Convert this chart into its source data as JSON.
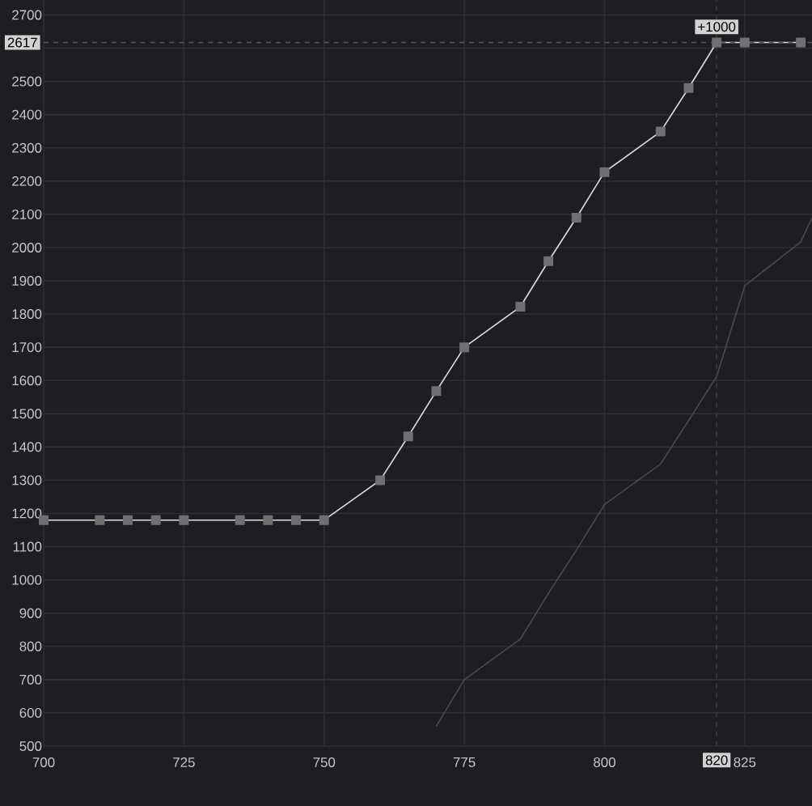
{
  "chart_data": {
    "type": "line",
    "series": [
      {
        "color": "#4a4a4c",
        "marker": "none",
        "x": [
          770,
          775,
          785,
          790,
          795,
          800,
          810,
          815,
          820,
          825,
          835,
          837
        ],
        "values": [
          560,
          700,
          822,
          960,
          1090,
          1227,
          1349,
          1480,
          1612,
          1885,
          2017,
          2090
        ]
      },
      {
        "color": "#e0e0e0",
        "marker": "square",
        "x": [
          700,
          710,
          715,
          720,
          725,
          735,
          740,
          745,
          750,
          760,
          765,
          770,
          775,
          785,
          790,
          795,
          800,
          810,
          815,
          820,
          825,
          835
        ],
        "values": [
          1180,
          1180,
          1180,
          1180,
          1180,
          1180,
          1180,
          1180,
          1180,
          1300,
          1432,
          1568,
          1700,
          1822,
          1959,
          2090,
          2227,
          2349,
          2480,
          2617,
          2617,
          2617
        ]
      }
    ],
    "xlim": [
      700,
      837
    ],
    "ylim": [
      500,
      2745
    ],
    "xticks": [
      700,
      725,
      750,
      775,
      800,
      825
    ],
    "yticks": [
      500,
      600,
      700,
      800,
      900,
      1000,
      1100,
      1200,
      1300,
      1400,
      1500,
      1600,
      1700,
      1800,
      1900,
      2000,
      2100,
      2200,
      2300,
      2400,
      2500,
      {
        "value": 2600,
        "label": null
      },
      2700
    ],
    "grid": true,
    "line_style": "solid",
    "ref_lines": [
      {
        "axis": "y",
        "value": 2617,
        "label": "2617",
        "line_style": "dashed",
        "color": "#5a5a5c"
      },
      {
        "axis": "x",
        "value": 820,
        "label": "820",
        "line_style": "dashed",
        "color": "#3c3c3f"
      }
    ],
    "annotations": [
      {
        "text": "+1000",
        "x": 820,
        "y": 2617
      }
    ]
  }
}
